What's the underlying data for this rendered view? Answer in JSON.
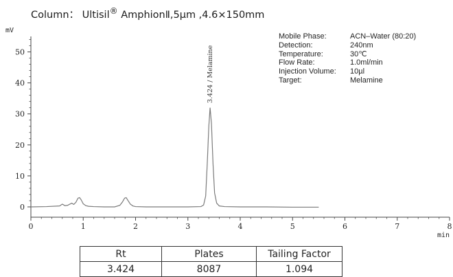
{
  "title": {
    "prefix": "Column： Ultisil",
    "registered": "®",
    "suffix": " AmphionⅡ,5μm ,4.6×150mm"
  },
  "conditions": {
    "labels": [
      "Mobile Phase:",
      "Detection:",
      "Temperature:",
      "Flow Rate:",
      "Injection Volume:",
      "Target:"
    ],
    "values": [
      "ACN–Water (80:20)",
      "240nm",
      "30℃",
      "1.0ml/min",
      "10µl",
      " Melamine"
    ]
  },
  "table": {
    "headers": [
      "Rt",
      "Plates",
      "Tailing Factor"
    ],
    "row": [
      "3.424",
      "8087",
      "1.094"
    ]
  },
  "colors": {
    "trace": "#7a7a7a",
    "axis": "#444444",
    "peak_label": "#333333"
  },
  "chart_data": {
    "type": "line",
    "title": "Column： Ultisil® AmphionⅡ,5μm ,4.6×150mm",
    "xlabel": "min",
    "ylabel": "mV",
    "xlim": [
      0,
      8
    ],
    "ylim": [
      -3,
      55
    ],
    "x_ticks": [
      "0",
      "1",
      "2",
      "3",
      "4",
      "5",
      "6",
      "7",
      "8"
    ],
    "y_ticks": [
      "0",
      "10",
      "20",
      "30",
      "40",
      "50"
    ],
    "grid": false,
    "series": [
      {
        "x": [
          0.0,
          0.3,
          0.55,
          0.6,
          0.65,
          0.7,
          0.78,
          0.82,
          0.86,
          0.9,
          0.93,
          0.96,
          1.0,
          1.05,
          1.1,
          1.2,
          1.4,
          1.6,
          1.7,
          1.75,
          1.79,
          1.82,
          1.85,
          1.9,
          1.95,
          2.0,
          2.2,
          2.6,
          3.0,
          3.25,
          3.3,
          3.34,
          3.37,
          3.4,
          3.424,
          3.45,
          3.48,
          3.51,
          3.55,
          3.6,
          3.7,
          4.0,
          4.5,
          5.0,
          5.5
        ],
        "y": [
          0.0,
          0.1,
          0.3,
          0.9,
          0.4,
          0.5,
          1.2,
          0.8,
          1.5,
          2.8,
          3.0,
          2.3,
          1.0,
          0.4,
          0.2,
          0.1,
          0.0,
          0.0,
          0.5,
          1.6,
          2.8,
          3.0,
          2.2,
          0.9,
          0.3,
          0.1,
          0.0,
          0.0,
          0.0,
          0.1,
          0.6,
          3.5,
          14.0,
          26.0,
          32.0,
          27.0,
          14.0,
          4.5,
          1.2,
          0.3,
          0.1,
          0.0,
          0.0,
          -0.1,
          -0.1
        ]
      }
    ],
    "annotations": [
      {
        "x": 3.424,
        "text": "3.424 / Melamine"
      }
    ]
  }
}
